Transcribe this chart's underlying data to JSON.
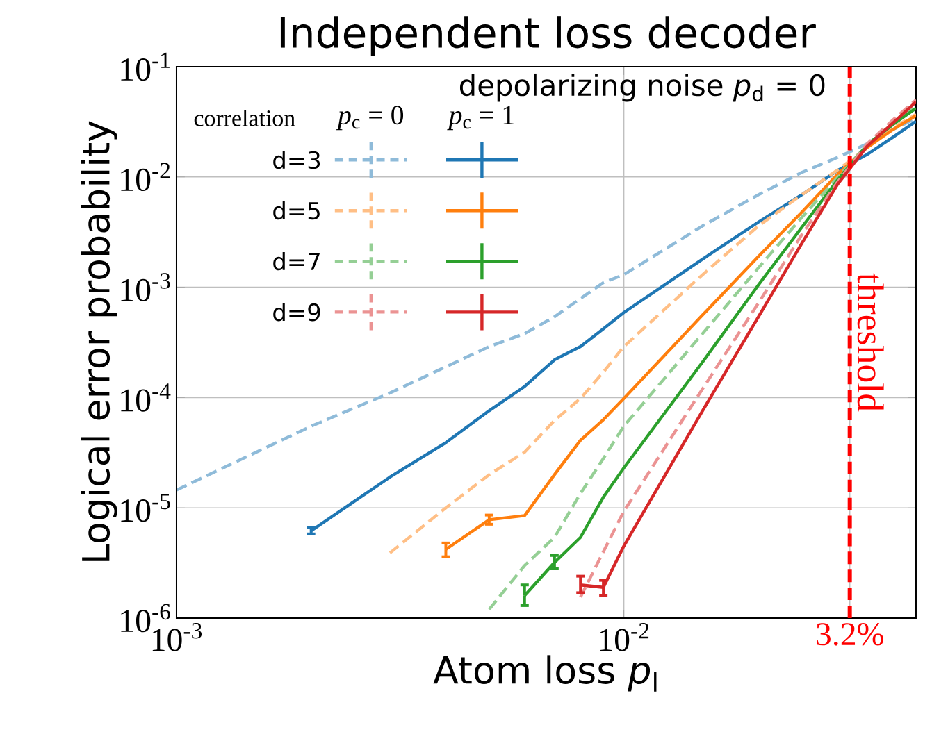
{
  "chart_data": {
    "type": "line",
    "title": "Independent loss decoder",
    "xlabel": "Atom loss *p*$_{l}$",
    "ylabel": "Logical error probability",
    "legend_title": "depolarizing noise *p*$_{d}$ = 0",
    "annotations": [
      "correlation",
      "*p*$_{c}$ = 0",
      "*p*$_{c}$ = 1"
    ],
    "log": "xy",
    "grid": true,
    "legend": "top left",
    "marker": "none",
    "xlim": [
      0.001,
      0.045
    ],
    "ylim": [
      1e-06,
      0.1
    ],
    "xticks": [
      {
        "value": 0.001,
        "label": "10$^{-3}$"
      },
      {
        "value": 0.01,
        "label": "10$^{-2}$"
      },
      {
        "value": 0.032,
        "label": "3.2%"
      }
    ],
    "yticks": [
      {
        "value": 1e-06,
        "label": "10$^{-6}$"
      },
      {
        "value": 1e-05,
        "label": "10$^{-5}$"
      },
      {
        "value": 0.0001,
        "label": "10$^{-4}$"
      },
      {
        "value": 0.001,
        "label": "10$^{-3}$"
      },
      {
        "value": 0.01,
        "label": "10$^{-2}$"
      },
      {
        "value": 0.1,
        "label": "10$^{-1}$"
      }
    ],
    "x": [
      0.001,
      0.002,
      0.003,
      0.004,
      0.005,
      0.006,
      0.007,
      0.008,
      0.009,
      0.01,
      0.015,
      0.02,
      0.025,
      0.03,
      0.035,
      0.04,
      0.045
    ],
    "ref_lines": [
      {
        "axis": "x",
        "value": 0.032,
        "label": "threshold",
        "color": "#ff0000",
        "line_style": "dashed"
      }
    ],
    "series": [
      {
        "name": "d=3",
        "color": "#8fbbd9",
        "line_style": "dashed",
        "values": [
          1.45e-05,
          5.5e-05,
          0.00011,
          0.00019,
          0.00029,
          0.00038,
          0.00054,
          0.00079,
          0.0011,
          0.0013,
          0.0036,
          0.0069,
          0.011,
          0.015,
          0.02,
          0.027,
          0.034
        ]
      },
      {
        "color": "#1f77b4",
        "line_style": "solid",
        "values": [
          null,
          6.2e-06,
          1.9e-05,
          3.9e-05,
          7.6e-05,
          0.000126,
          0.00022,
          0.00029,
          0.00042,
          0.00059,
          0.0018,
          0.0039,
          0.0069,
          0.0114,
          0.016,
          0.023,
          0.032
        ],
        "errors": [
          null,
          [
            5.8e-06,
            6.6e-06
          ],
          null,
          null,
          null,
          null,
          null,
          null,
          null,
          null,
          null,
          null,
          null,
          null,
          null,
          null,
          null
        ]
      },
      {
        "name": "d=5",
        "color": "#ffbf86",
        "line_style": "dashed",
        "values": [
          null,
          null,
          3.9e-06,
          1e-05,
          2e-05,
          3.2e-05,
          6.2e-05,
          9.8e-05,
          0.00017,
          0.00029,
          0.0013,
          0.0036,
          0.0069,
          0.0115,
          0.0185,
          0.028,
          0.037
        ]
      },
      {
        "color": "#ff7f0e",
        "line_style": "solid",
        "values": [
          null,
          null,
          null,
          4.2e-06,
          7.8e-06,
          8.5e-06,
          2e-05,
          4.1e-05,
          6.3e-05,
          9.8e-05,
          0.00056,
          0.0019,
          0.0048,
          0.0105,
          0.0185,
          0.027,
          0.036
        ],
        "errors": [
          null,
          null,
          null,
          [
            3.6e-06,
            4.8e-06
          ],
          [
            7.1e-06,
            8.6e-06
          ],
          null,
          null,
          null,
          null,
          null,
          null,
          null,
          null,
          null,
          null,
          null,
          null
        ]
      },
      {
        "name": "d=7",
        "color": "#95cf95",
        "line_style": "dashed",
        "values": [
          null,
          null,
          null,
          null,
          1.2e-06,
          3e-06,
          5.4e-06,
          1.35e-05,
          2.8e-05,
          5.5e-05,
          0.00038,
          0.0015,
          0.0043,
          0.0098,
          0.0196,
          0.031,
          0.044
        ]
      },
      {
        "color": "#2ca02c",
        "line_style": "solid",
        "values": [
          null,
          null,
          null,
          null,
          null,
          1.6e-06,
          3.2e-06,
          5.4e-06,
          1.25e-05,
          2.3e-05,
          0.00021,
          0.00105,
          0.0035,
          0.0093,
          0.0196,
          0.03,
          0.042
        ],
        "errors": [
          null,
          null,
          null,
          null,
          null,
          [
            1.3e-06,
            2e-06
          ],
          [
            2.8e-06,
            3.7e-06
          ],
          null,
          null,
          null,
          null,
          null,
          null,
          null,
          null,
          null,
          null
        ]
      },
      {
        "name": "d=9",
        "color": "#eb9393",
        "line_style": "dashed",
        "values": [
          null,
          null,
          null,
          null,
          null,
          null,
          null,
          1.55e-06,
          4e-06,
          9.3e-06,
          0.00012,
          0.00072,
          0.003,
          0.0089,
          0.02,
          0.033,
          0.05
        ]
      },
      {
        "color": "#d62728",
        "line_style": "solid",
        "values": [
          null,
          null,
          null,
          null,
          null,
          null,
          null,
          2e-06,
          1.9e-06,
          4.5e-06,
          7.6e-05,
          0.00054,
          0.0025,
          0.0085,
          0.019,
          0.031,
          0.048
        ],
        "errors": [
          null,
          null,
          null,
          null,
          null,
          null,
          null,
          [
            1.7e-06,
            2.4e-06
          ],
          [
            1.6e-06,
            2.2e-06
          ],
          null,
          null,
          null,
          null,
          null,
          null,
          null,
          null
        ]
      }
    ]
  }
}
